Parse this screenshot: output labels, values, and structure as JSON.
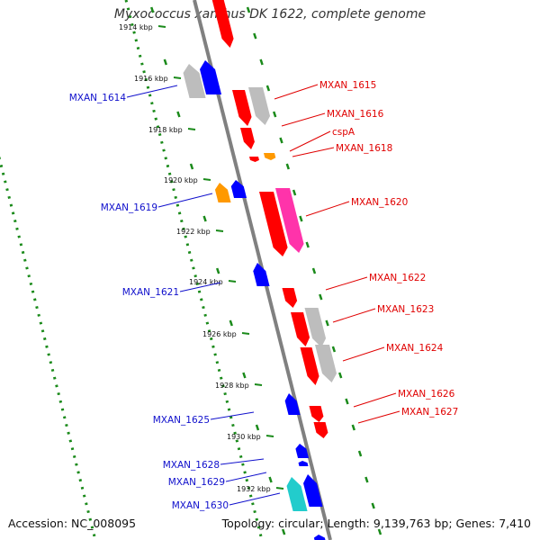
{
  "title": "Myxococcus xanthus DK 1622, complete genome",
  "footer": {
    "accession": "Accession: NC_008095",
    "stats": "Topology: circular; Length: 9,139,763 bp; Genes: 7,410"
  },
  "colors": {
    "forward_label": "#e00000",
    "reverse_label": "#1010cc",
    "backbone": "#808080",
    "tick_dots": "#1a8a1a",
    "gene_red": "#ff0000",
    "gene_blue": "#0000ff",
    "gene_grey": "#bdbdbd",
    "gene_orange": "#ff9900",
    "gene_pink": "#ff33aa",
    "gene_cyan": "#22cccc"
  },
  "scale_ticks": [
    "1914 kbp",
    "1916 kbp",
    "1918 kbp",
    "1920 kbp",
    "1922 kbp",
    "1924 kbp",
    "1926 kbp",
    "1928 kbp",
    "1930 kbp",
    "1932 kbp"
  ],
  "forward_labels": [
    "MXAN_1615",
    "MXAN_1616",
    "cspA",
    "MXAN_1618",
    "MXAN_1620",
    "MXAN_1622",
    "MXAN_1623",
    "MXAN_1624",
    "MXAN_1626",
    "MXAN_1627"
  ],
  "reverse_labels": [
    "MXAN_1614",
    "MXAN_1619",
    "MXAN_1621",
    "MXAN_1625",
    "MXAN_1628",
    "MXAN_1629",
    "MXAN_1630"
  ]
}
